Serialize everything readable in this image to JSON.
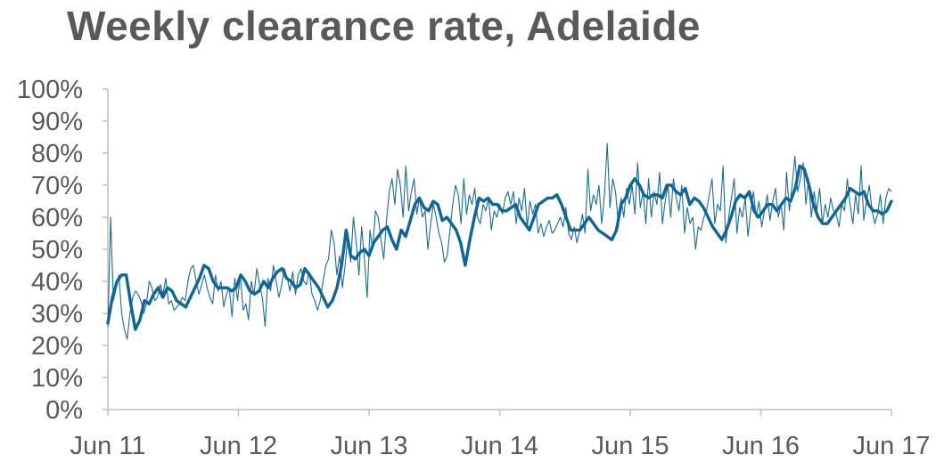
{
  "chart_data": {
    "type": "line",
    "title": "Weekly clearance rate, Adelaide",
    "xlabel": "",
    "ylabel": "",
    "ylim": [
      0,
      100
    ],
    "y_ticks": [
      "0%",
      "10%",
      "20%",
      "30%",
      "40%",
      "50%",
      "60%",
      "70%",
      "80%",
      "90%",
      "100%"
    ],
    "x_ticks": [
      "Jun 11",
      "Jun 12",
      "Jun 13",
      "Jun 14",
      "Jun 15",
      "Jun 16",
      "Jun 17"
    ],
    "grid": false,
    "legend": "none",
    "colors": {
      "weekly": "#1b6a96",
      "trend": "#0f6593",
      "axis": "#bfbfbf",
      "text": "#595959"
    },
    "series": [
      {
        "role": "weekly",
        "values": [
          26,
          60,
          34,
          38,
          42,
          30,
          25,
          22,
          30,
          35,
          37,
          36,
          34,
          30,
          33,
          40,
          38,
          34,
          35,
          39,
          36,
          41,
          33,
          34,
          31,
          32,
          33,
          35,
          34,
          40,
          44,
          45,
          40,
          36,
          39,
          42,
          38,
          35,
          33,
          42,
          37,
          40,
          32,
          36,
          38,
          29,
          41,
          34,
          42,
          31,
          33,
          28,
          40,
          36,
          44,
          39,
          35,
          26,
          41,
          37,
          45,
          40,
          35,
          39,
          44,
          41,
          37,
          43,
          36,
          42,
          44,
          40,
          39,
          43,
          36,
          34,
          31,
          34,
          40,
          45,
          47,
          56,
          52,
          42,
          48,
          38,
          45,
          55,
          46,
          60,
          52,
          42,
          57,
          47,
          35,
          56,
          50,
          62,
          60,
          53,
          47,
          59,
          68,
          72,
          64,
          75,
          70,
          60,
          76,
          62,
          68,
          72,
          61,
          66,
          60,
          62,
          50,
          58,
          64,
          60,
          55,
          52,
          46,
          48,
          56,
          64,
          70,
          67,
          58,
          72,
          61,
          67,
          64,
          69,
          60,
          58,
          64,
          62,
          66,
          56,
          62,
          60,
          64,
          61,
          66,
          68,
          64,
          68,
          58,
          66,
          62,
          69,
          57,
          65,
          61,
          64,
          55,
          58,
          54,
          57,
          59,
          55,
          56,
          58,
          60,
          57,
          63,
          55,
          53,
          57,
          52,
          56,
          61,
          55,
          75,
          62,
          67,
          64,
          70,
          58,
          67,
          83,
          63,
          72,
          68,
          58,
          66,
          60,
          69,
          64,
          70,
          61,
          77,
          63,
          68,
          58,
          72,
          60,
          68,
          64,
          74,
          58,
          65,
          70,
          60,
          72,
          66,
          62,
          70,
          55,
          63,
          58,
          60,
          50,
          57,
          56,
          60,
          62,
          67,
          72,
          58,
          64,
          62,
          76,
          52,
          60,
          66,
          72,
          55,
          63,
          60,
          66,
          54,
          62,
          68,
          60,
          65,
          57,
          62,
          67,
          59,
          65,
          69,
          60,
          64,
          56,
          74,
          62,
          70,
          79,
          68,
          72,
          77,
          64,
          72,
          60,
          68,
          62,
          69,
          58,
          64,
          60,
          66,
          62,
          61,
          57,
          64,
          62,
          72,
          64,
          58,
          67,
          61,
          76,
          59,
          65,
          70,
          62,
          58,
          61,
          67,
          58,
          66,
          69,
          68
        ],
        "x_range": [
          2011.45,
          2017.45
        ]
      },
      {
        "role": "trend",
        "values": [
          27,
          35,
          40,
          42,
          42,
          33,
          25,
          28,
          34,
          33,
          36,
          38,
          35,
          38,
          37,
          34,
          33,
          32,
          35,
          38,
          41,
          45,
          44,
          40,
          38,
          38,
          38,
          37,
          38,
          42,
          40,
          37,
          36,
          37,
          40,
          38,
          41,
          43,
          44,
          41,
          40,
          38,
          39,
          44,
          42,
          40,
          38,
          35,
          32,
          34,
          38,
          45,
          56,
          48,
          47,
          49,
          50,
          48,
          52,
          54,
          56,
          57,
          53,
          50,
          56,
          54,
          59,
          64,
          66,
          63,
          62,
          65,
          64,
          59,
          60,
          58,
          56,
          52,
          45,
          53,
          60,
          66,
          65,
          66,
          64,
          64,
          62,
          62,
          63,
          64,
          60,
          58,
          56,
          60,
          64,
          65,
          66,
          66,
          67,
          64,
          60,
          56,
          56,
          56,
          58,
          60,
          58,
          56,
          55,
          54,
          53,
          56,
          64,
          66,
          70,
          72,
          70,
          67,
          66,
          67,
          67,
          66,
          70,
          70,
          68,
          67,
          69,
          64,
          66,
          65,
          63,
          60,
          57,
          55,
          53,
          56,
          60,
          65,
          67,
          66,
          68,
          62,
          60,
          62,
          64,
          64,
          62,
          64,
          66,
          65,
          69,
          76,
          75,
          70,
          64,
          60,
          58,
          58,
          60,
          62,
          64,
          66,
          69,
          68,
          67,
          68,
          64,
          62,
          62,
          61,
          62,
          65
        ]
      }
    ]
  }
}
